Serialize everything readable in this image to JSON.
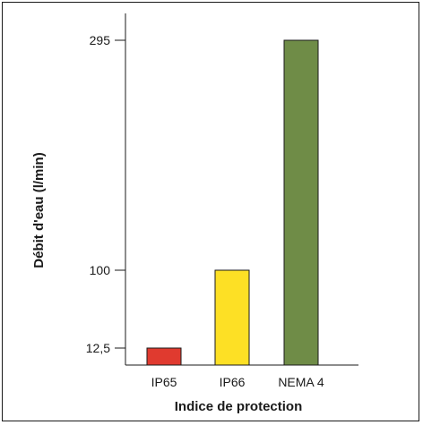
{
  "chart_data": {
    "type": "bar",
    "title": "",
    "xlabel": "Indice de protection",
    "ylabel": "Débit d'eau (l/min)",
    "categories": [
      "IP65",
      "IP66",
      "NEMA 4"
    ],
    "values": [
      12.5,
      100,
      295
    ],
    "colors": [
      "#e03a2f",
      "#fde025",
      "#6f8c47"
    ],
    "y_ticks": [
      {
        "value": 12.5,
        "label": "12,5"
      },
      {
        "value": 100,
        "label": "100"
      },
      {
        "value": 295,
        "label": "295"
      }
    ],
    "ylim": [
      0,
      295
    ],
    "grid": false,
    "legend": "none"
  }
}
